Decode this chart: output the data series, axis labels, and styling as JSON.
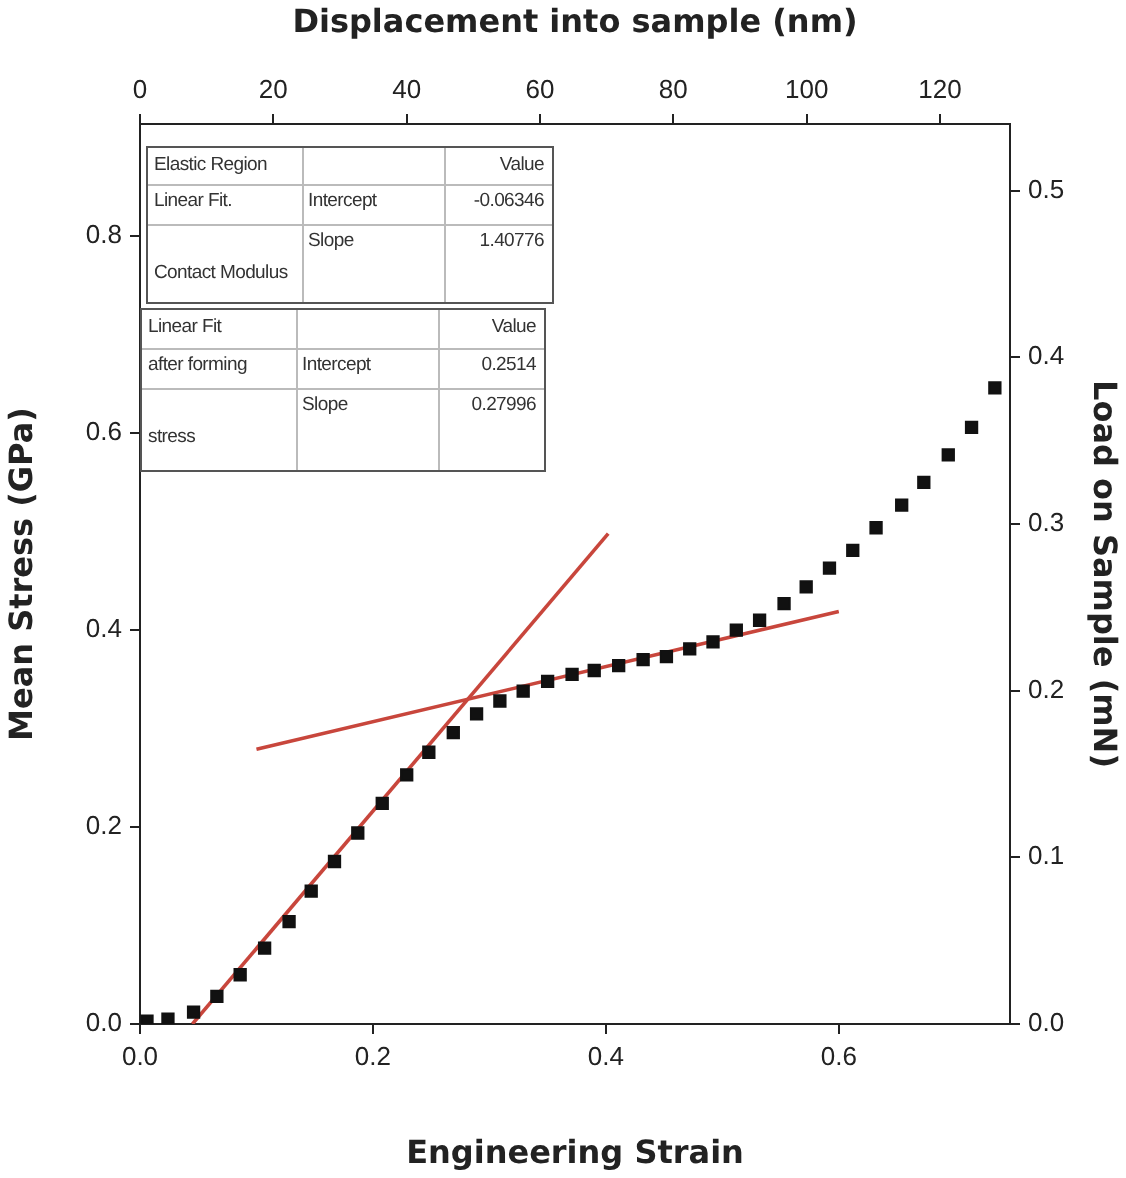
{
  "chart_data": {
    "type": "scatter",
    "xlabel": "Engineering Strain",
    "ylabel": "Mean Stress (GPa)",
    "y2label": "Load on Sample (mN)",
    "x2label": "Displacement into sample (nm)",
    "xlim": [
      0,
      0.747
    ],
    "xticks": [
      {
        "value": 0,
        "label": "0.0"
      },
      {
        "value": 0.2,
        "label": "0.2"
      },
      {
        "value": 0.4,
        "label": "0.4"
      },
      {
        "value": 0.6,
        "label": "0.6"
      }
    ],
    "ylim": [
      0,
      0.914
    ],
    "yticks": [
      {
        "value": 0,
        "label": "0.0"
      },
      {
        "value": 0.2,
        "label": "0.2"
      },
      {
        "value": 0.4,
        "label": "0.4"
      },
      {
        "value": 0.6,
        "label": "0.6"
      },
      {
        "value": 0.8,
        "label": "0.8"
      }
    ],
    "y2lim": [
      0,
      0.54
    ],
    "y2ticks": [
      {
        "value": 0,
        "label": "0.0"
      },
      {
        "value": 0.1,
        "label": "0.1"
      },
      {
        "value": 0.2,
        "label": "0.2"
      },
      {
        "value": 0.3,
        "label": "0.3"
      },
      {
        "value": 0.4,
        "label": "0.4"
      },
      {
        "value": 0.5,
        "label": "0.5"
      }
    ],
    "x2lim": [
      0,
      130.5
    ],
    "x2ticks": [
      0,
      20,
      40,
      60,
      80,
      100,
      120
    ],
    "grid": false,
    "legend": false,
    "marker": "square",
    "series": [
      {
        "color": "#111111",
        "x": [
          0.006,
          0.024,
          0.046,
          0.066,
          0.086,
          0.107,
          0.128,
          0.147,
          0.167,
          0.187,
          0.208,
          0.229,
          0.248,
          0.269,
          0.289,
          0.309,
          0.329,
          0.35,
          0.371,
          0.39,
          0.411,
          0.432,
          0.452,
          0.472,
          0.492,
          0.512,
          0.532,
          0.553,
          0.572,
          0.592,
          0.612,
          0.632,
          0.654,
          0.673,
          0.694,
          0.714,
          0.734
        ],
        "values": [
          0.003,
          0.005,
          0.012,
          0.028,
          0.05,
          0.077,
          0.104,
          0.135,
          0.165,
          0.194,
          0.224,
          0.253,
          0.276,
          0.296,
          0.315,
          0.328,
          0.338,
          0.348,
          0.355,
          0.359,
          0.364,
          0.37,
          0.373,
          0.381,
          0.388,
          0.4,
          0.41,
          0.427,
          0.444,
          0.463,
          0.481,
          0.504,
          0.527,
          0.55,
          0.578,
          0.606,
          0.646
        ]
      },
      {
        "type": "line",
        "color": "#c8463c",
        "marker": "none",
        "x": [
          0.045,
          0.402
        ],
        "values": [
          0,
          0.498
        ]
      },
      {
        "type": "line",
        "color": "#c8463c",
        "marker": "none",
        "x": [
          0.1,
          0.6
        ],
        "values": [
          0.279,
          0.419
        ]
      }
    ],
    "annotations": [
      "Elastic Region",
      "Value",
      "Linear Fit.",
      "Intercept",
      "-0.06346",
      "Slope",
      "1.40776",
      "Contact Modulus",
      "Linear Fit",
      "Value",
      "after forming",
      "Intercept",
      "0.2514",
      "Slope",
      "0.27996",
      "stress"
    ]
  }
}
